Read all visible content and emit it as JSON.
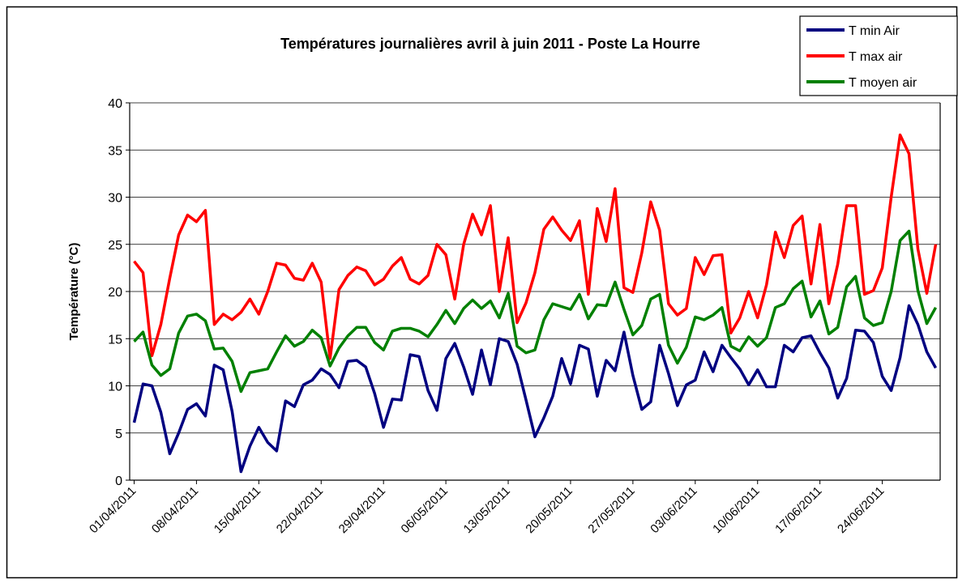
{
  "chart_data": {
    "type": "line",
    "title": "Températures journalières avril à juin 2011 - Poste La Hourre",
    "y_label": "Température (°C)",
    "categories": [
      "01/04/2011",
      null,
      null,
      null,
      null,
      null,
      null,
      "08/04/2011",
      null,
      null,
      null,
      null,
      null,
      null,
      "15/04/2011",
      null,
      null,
      null,
      null,
      null,
      null,
      "22/04/2011",
      null,
      null,
      null,
      null,
      null,
      null,
      "29/04/2011",
      null,
      null,
      null,
      null,
      null,
      null,
      "06/05/2011",
      null,
      null,
      null,
      null,
      null,
      null,
      "13/05/2011",
      null,
      null,
      null,
      null,
      null,
      null,
      "20/05/2011",
      null,
      null,
      null,
      null,
      null,
      null,
      "27/05/2011",
      null,
      null,
      null,
      null,
      null,
      null,
      "03/06/2011",
      null,
      null,
      null,
      null,
      null,
      null,
      "10/06/2011",
      null,
      null,
      null,
      null,
      null,
      null,
      "17/06/2011",
      null,
      null,
      null,
      null,
      null,
      null,
      "24/06/2011",
      null,
      null,
      null,
      null,
      null,
      null
    ],
    "series": [
      {
        "name": "T min Air",
        "color": "#000080",
        "values": [
          6.1,
          10.2,
          10,
          7.2,
          2.8,
          5,
          7.5,
          8.1,
          6.8,
          12.2,
          11.7,
          7.3,
          0.9,
          3.6,
          5.6,
          4,
          3.1,
          8.4,
          7.8,
          10.1,
          10.6,
          11.8,
          11.2,
          9.8,
          12.6,
          12.7,
          12,
          9.2,
          5.6,
          8.6,
          8.5,
          13.3,
          13.1,
          9.5,
          7.4,
          12.9,
          14.5,
          12,
          9.1,
          13.8,
          10.1,
          15,
          14.7,
          12.3,
          8.5,
          4.6,
          6.6,
          8.9,
          12.9,
          10.2,
          14.3,
          13.9,
          8.9,
          12.7,
          11.6,
          15.7,
          11.1,
          7.5,
          8.3,
          14.3,
          11.3,
          7.9,
          10.1,
          10.6,
          13.6,
          11.5,
          14.3,
          13,
          11.8,
          10.1,
          11.7,
          9.9,
          9.9,
          14.3,
          13.6,
          15.1,
          15.3,
          13.5,
          11.9,
          8.7,
          10.8,
          15.9,
          15.8,
          14.6,
          11,
          9.5,
          13,
          18.5,
          16.5,
          13.6,
          11.9
        ]
      },
      {
        "name": "T max air",
        "color": "#ff0000",
        "values": [
          23.2,
          22,
          13.2,
          16.5,
          21.4,
          26,
          28.1,
          27.4,
          28.6,
          16.5,
          17.6,
          17,
          17.8,
          19.2,
          17.6,
          20,
          23,
          22.8,
          21.4,
          21.2,
          23,
          21,
          12.9,
          20.2,
          21.7,
          22.6,
          22.2,
          20.7,
          21.3,
          22.7,
          23.6,
          21.3,
          20.8,
          21.7,
          25,
          23.9,
          19.2,
          25,
          28.2,
          26,
          29.1,
          20,
          25.7,
          16.7,
          18.8,
          22,
          26.6,
          27.9,
          26.5,
          25.4,
          27.5,
          19.7,
          28.8,
          25.3,
          30.9,
          20.4,
          19.9,
          24.1,
          29.5,
          26.5,
          18.7,
          17.5,
          18.2,
          23.6,
          21.8,
          23.8,
          23.9,
          15.6,
          17.2,
          20,
          17.2,
          20.7,
          26.3,
          23.6,
          27,
          28,
          20.8,
          27.1,
          18.7,
          22.9,
          29.1,
          29.1,
          19.7,
          20.1,
          22.5,
          30,
          36.6,
          34.6,
          24.5,
          19.8,
          25
        ]
      },
      {
        "name": "T moyen air",
        "color": "#008000",
        "values": [
          14.7,
          15.7,
          12.2,
          11.1,
          11.8,
          15.6,
          17.4,
          17.6,
          16.9,
          13.9,
          14,
          12.6,
          9.4,
          11.4,
          11.6,
          11.8,
          13.6,
          15.3,
          14.2,
          14.7,
          15.9,
          15.1,
          12.1,
          14,
          15.3,
          16.2,
          16.2,
          14.6,
          13.8,
          15.8,
          16.1,
          16.1,
          15.8,
          15.2,
          16.5,
          18,
          16.6,
          18.2,
          19.1,
          18.2,
          19,
          17.2,
          19.8,
          14.2,
          13.5,
          13.8,
          17,
          18.7,
          18.4,
          18.1,
          19.7,
          17.1,
          18.6,
          18.5,
          21,
          18.1,
          15.4,
          16.4,
          19.2,
          19.7,
          14.3,
          12.4,
          14.1,
          17.3,
          17,
          17.5,
          18.3,
          14.2,
          13.7,
          15.2,
          14.2,
          15.1,
          18.3,
          18.7,
          20.3,
          21.1,
          17.3,
          19,
          15.5,
          16.2,
          20.5,
          21.6,
          17.2,
          16.4,
          16.7,
          20,
          25.4,
          26.4,
          20.1,
          16.6,
          18.3
        ]
      }
    ],
    "ylim": [
      0,
      40
    ],
    "yticks": [
      0,
      5,
      10,
      15,
      20,
      25,
      30,
      35,
      40
    ],
    "grid": true,
    "legend": "top-right"
  }
}
